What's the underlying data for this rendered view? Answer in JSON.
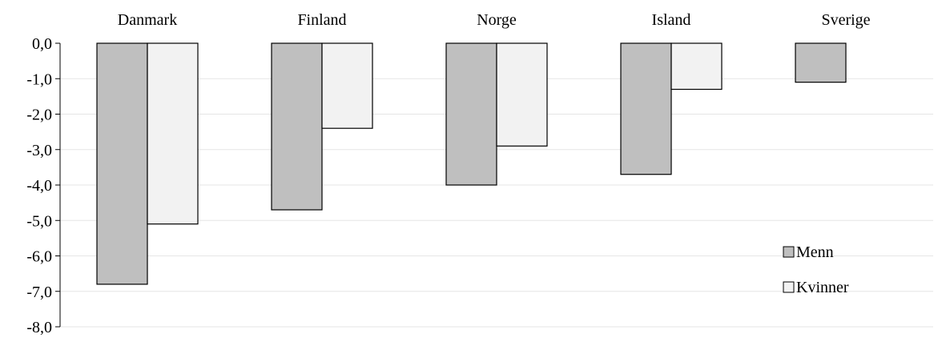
{
  "chart_data": {
    "type": "bar",
    "categories": [
      "Danmark",
      "Finland",
      "Norge",
      "Island",
      "Sverige"
    ],
    "series": [
      {
        "name": "Menn",
        "values": [
          -6.8,
          -4.7,
          -4.0,
          -3.7,
          -1.1
        ]
      },
      {
        "name": "Kvinner",
        "values": [
          -5.1,
          -2.4,
          -2.9,
          -1.3,
          0.0
        ]
      }
    ],
    "ylim": [
      -8,
      0
    ],
    "yticks": [
      "0,0",
      "-1,0",
      "-2,0",
      "-3,0",
      "-4,0",
      "-5,0",
      "-6,0",
      "-7,0",
      "-8,0"
    ],
    "legend": {
      "position": "lower-right"
    },
    "grid": true,
    "colors": {
      "Menn": "#bfbfbf",
      "Kvinner": "#f2f2f2",
      "gridline": "#e6e6e6",
      "axis": "#000000",
      "bar_edge": "#000000"
    }
  }
}
